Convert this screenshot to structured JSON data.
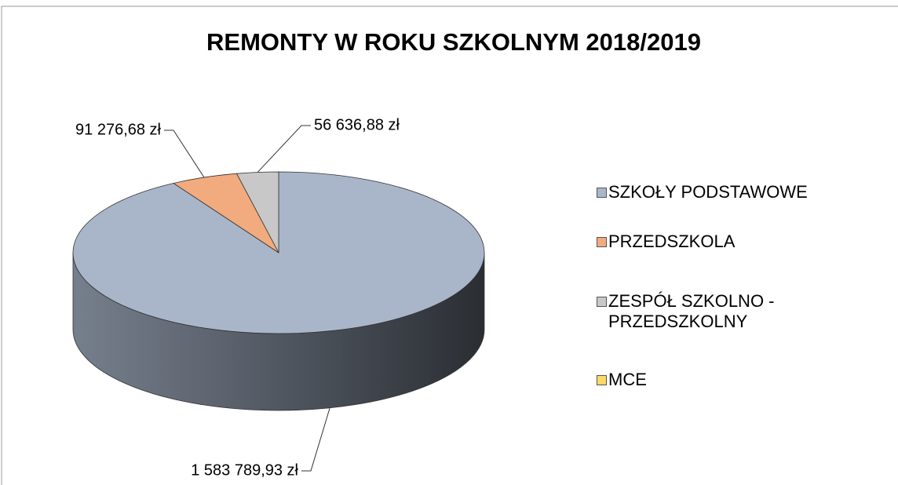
{
  "chart_data": {
    "type": "pie3d",
    "title": "REMONTY W ROKU SZKOLNYM 2018/2019",
    "categories": [
      "SZKOŁY PODSTAWOWE",
      "PRZEDSZKOLA",
      "ZESPÓŁ SZKOLNO - PRZEDSZKOLNY",
      "MCE"
    ],
    "values": [
      1583789.93,
      91276.68,
      56636.88,
      0
    ],
    "value_labels": [
      "1 583 789,93 zł",
      "91 276,68 zł",
      "56 636,88 zł",
      null
    ],
    "colors": [
      "#a9b6ca",
      "#f2ab7e",
      "#c8c8c8",
      "#ffd966"
    ],
    "legend": "right"
  }
}
